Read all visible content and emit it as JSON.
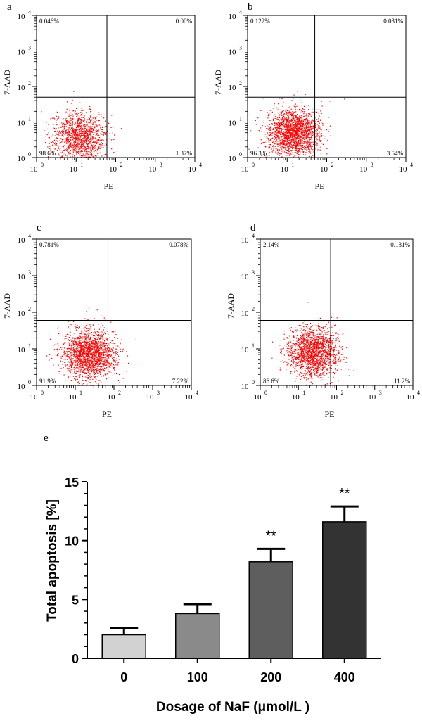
{
  "chart_data": [
    {
      "type": "scatter",
      "panel": "a",
      "xlabel": "PE",
      "ylabel": "7-AAD",
      "x_scale": "log",
      "y_scale": "log",
      "xlim": [
        1,
        10000
      ],
      "ylim": [
        1,
        10000
      ],
      "x_ticks": [
        {
          "b": "10",
          "e": "0"
        },
        {
          "b": "10",
          "e": "1"
        },
        {
          "b": "10",
          "e": "2"
        },
        {
          "b": "10",
          "e": "3"
        },
        {
          "b": "10",
          "e": "4"
        }
      ],
      "y_ticks": [
        {
          "b": "10",
          "e": "0"
        },
        {
          "b": "10",
          "e": "1"
        },
        {
          "b": "10",
          "e": "2"
        },
        {
          "b": "10",
          "e": "3"
        },
        {
          "b": "10",
          "e": "4"
        }
      ],
      "gate": {
        "x": 60,
        "y": 50
      },
      "quadrants": {
        "top_left": "0.046%",
        "top_right": "0.00%",
        "bottom_left": "98.6%",
        "bottom_right": "1.37%"
      },
      "cloud": {
        "x_center": 12,
        "y_center": 4,
        "n_points": 1400,
        "color": "#ff0000"
      }
    },
    {
      "type": "scatter",
      "panel": "b",
      "xlabel": "PE",
      "ylabel": "7-AAD",
      "x_scale": "log",
      "y_scale": "log",
      "xlim": [
        1,
        10000
      ],
      "ylim": [
        1,
        10000
      ],
      "x_ticks": [
        {
          "b": "10",
          "e": "0"
        },
        {
          "b": "10",
          "e": "1"
        },
        {
          "b": "10",
          "e": "2"
        },
        {
          "b": "10",
          "e": "3"
        },
        {
          "b": "10",
          "e": "4"
        }
      ],
      "y_ticks": [
        {
          "b": "10",
          "e": "0"
        },
        {
          "b": "10",
          "e": "1"
        },
        {
          "b": "10",
          "e": "2"
        },
        {
          "b": "10",
          "e": "3"
        },
        {
          "b": "10",
          "e": "4"
        }
      ],
      "gate": {
        "x": 50,
        "y": 50
      },
      "quadrants": {
        "top_left": "0.122%",
        "top_right": "0.031%",
        "bottom_left": "96.3%",
        "bottom_right": "3.54%"
      },
      "cloud": {
        "x_center": 14,
        "y_center": 5,
        "n_points": 2000,
        "color": "#ff0000"
      }
    },
    {
      "type": "scatter",
      "panel": "c",
      "xlabel": "PE",
      "ylabel": "7-AAD",
      "x_scale": "log",
      "y_scale": "log",
      "xlim": [
        1,
        10000
      ],
      "ylim": [
        1,
        10000
      ],
      "x_ticks": [
        {
          "b": "10",
          "e": "0"
        },
        {
          "b": "10",
          "e": "1"
        },
        {
          "b": "10",
          "e": "2"
        },
        {
          "b": "10",
          "e": "3"
        },
        {
          "b": "10",
          "e": "4"
        }
      ],
      "y_ticks": [
        {
          "b": "10",
          "e": "0"
        },
        {
          "b": "10",
          "e": "1"
        },
        {
          "b": "10",
          "e": "2"
        },
        {
          "b": "10",
          "e": "3"
        },
        {
          "b": "10",
          "e": "4"
        }
      ],
      "gate": {
        "x": 70,
        "y": 60
      },
      "quadrants": {
        "top_left": "0.781%",
        "top_right": "0.078%",
        "bottom_left": "91.9%",
        "bottom_right": "7.22%"
      },
      "cloud": {
        "x_center": 22,
        "y_center": 7,
        "n_points": 1900,
        "color": "#ff0000"
      }
    },
    {
      "type": "scatter",
      "panel": "d",
      "xlabel": "PE",
      "ylabel": "7-AAD",
      "x_scale": "log",
      "y_scale": "log",
      "xlim": [
        1,
        10000
      ],
      "ylim": [
        1,
        10000
      ],
      "x_ticks": [
        {
          "b": "10",
          "e": "0"
        },
        {
          "b": "10",
          "e": "1"
        },
        {
          "b": "10",
          "e": "2"
        },
        {
          "b": "10",
          "e": "3"
        },
        {
          "b": "10",
          "e": "4"
        }
      ],
      "y_ticks": [
        {
          "b": "10",
          "e": "0"
        },
        {
          "b": "10",
          "e": "1"
        },
        {
          "b": "10",
          "e": "2"
        },
        {
          "b": "10",
          "e": "3"
        },
        {
          "b": "10",
          "e": "4"
        }
      ],
      "gate": {
        "x": 70,
        "y": 60
      },
      "quadrants": {
        "top_left": "2.14%",
        "top_right": "0.131%",
        "bottom_left": "86.6%",
        "bottom_right": "11.2%"
      },
      "cloud": {
        "x_center": 25,
        "y_center": 8,
        "n_points": 1900,
        "color": "#ff0000"
      }
    },
    {
      "type": "bar",
      "panel": "e",
      "categories": [
        "0",
        "100",
        "200",
        "400"
      ],
      "values": [
        2.0,
        3.8,
        8.2,
        11.6
      ],
      "errors": [
        0.6,
        0.8,
        1.1,
        1.3
      ],
      "significance": [
        "",
        "",
        "**",
        "**"
      ],
      "bar_colors": [
        "#d2d2d2",
        "#8a8a8a",
        "#5e5e5e",
        "#333333"
      ],
      "xlabel": "Dosage of NaF (μmol/L )",
      "ylabel": "Total apoptosis [%]",
      "ylim": [
        0,
        15
      ],
      "y_ticks": [
        "0",
        "5",
        "10",
        "15"
      ]
    }
  ]
}
